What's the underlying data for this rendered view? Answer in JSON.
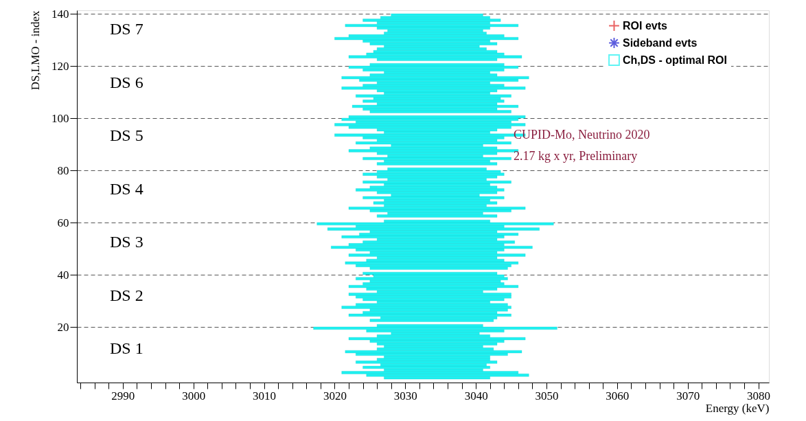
{
  "chart_data": {
    "type": "bar",
    "orientation": "horizontal",
    "xlabel": "Energy (keV)",
    "ylabel": "DS,LMO - index",
    "xlim": [
      2983.5,
      3081.5
    ],
    "ylim": [
      0,
      140
    ],
    "xticks": [
      {
        "value": 2984,
        "label": null
      },
      {
        "value": 2986,
        "label": null
      },
      {
        "value": 2988,
        "label": null
      },
      2990,
      {
        "value": 2992,
        "label": null
      },
      {
        "value": 2994,
        "label": null
      },
      {
        "value": 2996,
        "label": null
      },
      {
        "value": 2998,
        "label": null
      },
      3000,
      {
        "value": 3002,
        "label": null
      },
      {
        "value": 3004,
        "label": null
      },
      {
        "value": 3006,
        "label": null
      },
      {
        "value": 3008,
        "label": null
      },
      3010,
      {
        "value": 3012,
        "label": null
      },
      {
        "value": 3014,
        "label": null
      },
      {
        "value": 3016,
        "label": null
      },
      {
        "value": 3018,
        "label": null
      },
      3020,
      {
        "value": 3022,
        "label": null
      },
      {
        "value": 3024,
        "label": null
      },
      {
        "value": 3026,
        "label": null
      },
      {
        "value": 3028,
        "label": null
      },
      3030,
      {
        "value": 3032,
        "label": null
      },
      {
        "value": 3034,
        "label": null
      },
      {
        "value": 3036,
        "label": null
      },
      {
        "value": 3038,
        "label": null
      },
      3040,
      {
        "value": 3042,
        "label": null
      },
      {
        "value": 3044,
        "label": null
      },
      {
        "value": 3046,
        "label": null
      },
      {
        "value": 3048,
        "label": null
      },
      3050,
      {
        "value": 3052,
        "label": null
      },
      {
        "value": 3054,
        "label": null
      },
      {
        "value": 3056,
        "label": null
      },
      {
        "value": 3058,
        "label": null
      },
      3060,
      {
        "value": 3062,
        "label": null
      },
      {
        "value": 3064,
        "label": null
      },
      {
        "value": 3066,
        "label": null
      },
      {
        "value": 3068,
        "label": null
      },
      3070,
      {
        "value": 3072,
        "label": null
      },
      {
        "value": 3074,
        "label": null
      },
      {
        "value": 3076,
        "label": null
      },
      {
        "value": 3078,
        "label": null
      },
      3080
    ],
    "yticks": [
      20,
      40,
      60,
      80,
      100,
      120,
      140
    ],
    "grid": "y",
    "legend": "top right",
    "annotations": [
      "DS 1",
      "DS 2",
      "DS 3",
      "DS 4",
      "DS 5",
      "DS 6",
      "DS 7",
      "CUPID-Mo, Neutrino 2020",
      "2.17 kg x yr, Preliminary"
    ],
    "x": [
      0.5,
      1.5,
      2.5,
      3.5,
      4.5,
      5.5,
      6.5,
      7.5,
      8.5,
      9.5,
      10.5,
      11.5,
      12.5,
      13.5,
      14.5,
      15.5,
      16.5,
      17.5,
      18.5,
      19.5,
      20.5,
      21.5,
      22.5,
      23.5,
      24.5,
      25.5,
      26.5,
      27.5,
      28.5,
      29.5,
      30.5,
      31.5,
      32.5,
      33.5,
      34.5,
      35.5,
      36.5,
      37.5,
      38.5,
      39.5,
      40.5,
      41.5,
      42.5,
      43.5,
      44.5,
      45.5,
      46.5,
      47.5,
      48.5,
      49.5,
      50.5,
      51.5,
      52.5,
      53.5,
      54.5,
      55.5,
      56.5,
      57.5,
      58.5,
      59.5,
      60.5,
      61.5,
      62.5,
      63.5,
      64.5,
      65.5,
      66.5,
      67.5,
      68.5,
      69.5,
      70.5,
      71.5,
      72.5,
      73.5,
      74.5,
      75.5,
      76.5,
      77.5,
      78.5,
      79.5,
      80.5,
      81.5,
      82.5,
      83.5,
      84.5,
      85.5,
      86.5,
      87.5,
      88.5,
      89.5,
      90.5,
      91.5,
      92.5,
      93.5,
      94.5,
      95.5,
      96.5,
      97.5,
      98.5,
      99.5,
      100.5,
      101.5,
      102.5,
      103.5,
      104.5,
      105.5,
      106.5,
      107.5,
      108.5,
      109.5,
      110.5,
      111.5,
      112.5,
      113.5,
      114.5,
      115.5,
      116.5,
      117.5,
      118.5,
      119.5,
      120.5,
      121.5,
      122.5,
      123.5,
      124.5,
      125.5,
      126.5,
      127.5,
      128.5,
      129.5,
      130.5,
      131.5,
      132.5,
      133.5,
      134.5,
      135.5,
      136.5,
      137.5,
      138.5,
      139.5
    ],
    "series": [
      {
        "name": "ROI evts",
        "type": "scatter",
        "marker": "cross",
        "color": "#e02020",
        "values": [
          null,
          null,
          null,
          null,
          null,
          null,
          null,
          null,
          null,
          null,
          null,
          null,
          null,
          null,
          null,
          null,
          null,
          null,
          null,
          null,
          null,
          null,
          null,
          null,
          null,
          null,
          null,
          null,
          null,
          null,
          null,
          null,
          null,
          null,
          null,
          null,
          null,
          null,
          null,
          null,
          null,
          null,
          null,
          null,
          null,
          null,
          null,
          null,
          null,
          null,
          null,
          null,
          null,
          null,
          null,
          null,
          null,
          null,
          null,
          null,
          null,
          null,
          null,
          null,
          null,
          null,
          null,
          null,
          null,
          null,
          null,
          null,
          null,
          null,
          null,
          null,
          null,
          null,
          null,
          null,
          null,
          null,
          null,
          null,
          null,
          null,
          null,
          null,
          null,
          null,
          null,
          null,
          null,
          null,
          null,
          null,
          null,
          null,
          null,
          null,
          null,
          null,
          null,
          null,
          null,
          null,
          null,
          null,
          null,
          null,
          null,
          null,
          null,
          null,
          null,
          null,
          null,
          null,
          null,
          null,
          null,
          null,
          null,
          null,
          null,
          null,
          null,
          null,
          null,
          null,
          null,
          null,
          null,
          null,
          null,
          null,
          null,
          null,
          null,
          null
        ]
      },
      {
        "name": "Sideband evts",
        "type": "scatter",
        "marker": "star",
        "color": "#1a1ad0",
        "values": [
          null,
          null,
          null,
          null,
          null,
          null,
          null,
          null,
          null,
          null,
          null,
          null,
          null,
          null,
          null,
          null,
          null,
          null,
          null,
          null,
          null,
          null,
          null,
          null,
          null,
          null,
          null,
          null,
          null,
          null,
          null,
          null,
          null,
          null,
          null,
          null,
          null,
          null,
          null,
          null,
          null,
          null,
          null,
          null,
          null,
          null,
          null,
          null,
          null,
          null,
          null,
          null,
          null,
          null,
          null,
          null,
          null,
          null,
          null,
          null,
          null,
          null,
          null,
          null,
          null,
          null,
          null,
          null,
          null,
          null,
          null,
          null,
          null,
          null,
          null,
          null,
          null,
          null,
          null,
          null,
          null,
          null,
          null,
          null,
          null,
          null,
          null,
          null,
          null,
          null,
          null,
          null,
          null,
          null,
          null,
          null,
          null,
          null,
          null,
          null,
          null,
          null,
          null,
          null,
          null,
          null,
          null,
          null,
          null,
          null,
          null,
          null,
          null,
          null,
          null,
          null,
          null,
          null,
          null,
          null,
          null,
          null,
          null,
          null,
          null,
          null,
          null,
          null,
          null,
          null,
          null,
          null,
          null,
          null,
          null,
          null,
          null,
          null,
          null,
          null
        ]
      },
      {
        "name": "Ch,DS - optimal ROI",
        "type": "bar",
        "color": "#1ef0f0",
        "base": [
          3027,
          3024.5,
          3021,
          3027,
          3024,
          3026.5,
          3023,
          3026,
          3027,
          3023,
          3021.5,
          3026,
          3027,
          3026,
          3025,
          3022,
          3026,
          3028,
          3024.5,
          3017,
          3026,
          null,
          3025,
          3026.5,
          3022,
          3024,
          3025,
          3021,
          3023,
          3026,
          3024,
          3023,
          3022,
          3026,
          3024.5,
          3022,
          3024,
          3025,
          3023,
          3025.5,
          3024,
          null,
          3025,
          3023,
          3021.5,
          3024.5,
          3026,
          3022,
          3025,
          3023,
          3019.5,
          3022,
          3024,
          3026,
          3021,
          3023.5,
          3025,
          3019,
          3023,
          3017.5,
          3027,
          null,
          3026,
          3027.5,
          3025,
          3022,
          3027,
          3025.5,
          3027,
          3024,
          3028,
          3026,
          3023,
          3025,
          3027,
          3024,
          3027.5,
          3026,
          3024,
          3026,
          3027.5,
          null,
          3026,
          3027,
          3024,
          3027.5,
          3026,
          3022,
          3025,
          3028,
          3023,
          3026,
          3024,
          3020,
          3027,
          3026,
          3022,
          3020,
          3023,
          3021,
          3022,
          null,
          3025,
          3024,
          3022.5,
          3026,
          3024,
          3025.5,
          3023,
          3027,
          3026,
          3021,
          3024,
          3026,
          3023.5,
          3021,
          3025,
          3027,
          3024,
          3022,
          3025,
          null,
          3026,
          3022,
          3024.5,
          3025.5,
          3026,
          3027,
          3025,
          3024,
          3020,
          3022,
          3027,
          3027.5,
          3026,
          3021.5,
          3026,
          3024,
          3026.5,
          3028
        ],
        "values": [
          15,
          23,
          25,
          14,
          18,
          15,
          20,
          16,
          15,
          21.5,
          25,
          16.5,
          14,
          17,
          19,
          25,
          16,
          12.5,
          19.5,
          34.5,
          15,
          null,
          17.5,
          16.5,
          23,
          19,
          19.5,
          24,
          21.5,
          16,
          20,
          22,
          23,
          15,
          18.5,
          24,
          20,
          18.5,
          21.5,
          18.5,
          19,
          null,
          19.5,
          22,
          24.5,
          19.5,
          17,
          25,
          18,
          21,
          28.5,
          22,
          21.5,
          17,
          23,
          22.5,
          18,
          30,
          21,
          33.5,
          15,
          null,
          17,
          13.5,
          20,
          25,
          14.5,
          17.5,
          15,
          20,
          12.5,
          17,
          21,
          18,
          15,
          21,
          14,
          17,
          20,
          17.5,
          14,
          null,
          17,
          15,
          21,
          13.5,
          17,
          24,
          18,
          13,
          22,
          17,
          20,
          27,
          15,
          17,
          23,
          27,
          22,
          25,
          25,
          null,
          20,
          19,
          23.5,
          17,
          20,
          18,
          22,
          15,
          17,
          26,
          20,
          16,
          22.5,
          26.5,
          18,
          15,
          20,
          24,
          19,
          null,
          17,
          24.5,
          19.5,
          17.5,
          15.5,
          13.5,
          18,
          18,
          26,
          22,
          14.5,
          13.5,
          16,
          24.5,
          16,
          19.5,
          15.5,
          13
        ]
      }
    ]
  }
}
